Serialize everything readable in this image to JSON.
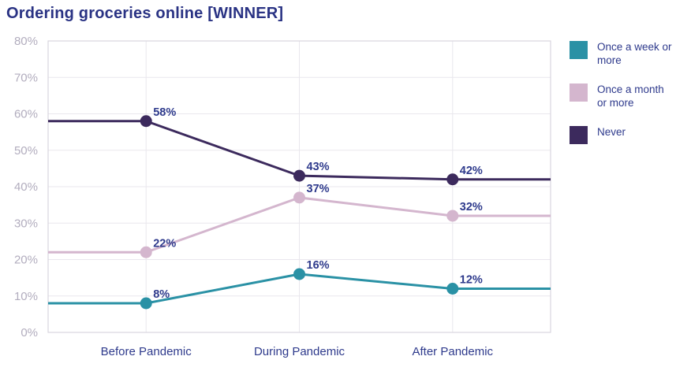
{
  "title": "Ordering groceries online [WINNER]",
  "colors": {
    "title": "#2a3384",
    "data_label": "#2e3a8c",
    "category_label": "#2e3a8c",
    "tick_label": "#b2adbe",
    "gridline": "#e9e7ed",
    "plot_border": "#d9d6de",
    "background": "#ffffff"
  },
  "chart_data": {
    "type": "line",
    "categories": [
      "Before Pandemic",
      "During Pandemic",
      "After Pandemic"
    ],
    "series": [
      {
        "name": "Once a week or more",
        "color": "#2a91a5",
        "values": [
          8,
          16,
          12
        ],
        "labels": [
          "8%",
          "16%",
          "12%"
        ]
      },
      {
        "name": "Once a month or more",
        "color": "#d4b6ce",
        "values": [
          22,
          37,
          32
        ],
        "labels": [
          "22%",
          "37%",
          "32%"
        ]
      },
      {
        "name": "Never",
        "color": "#3c2a5d",
        "values": [
          58,
          43,
          42
        ],
        "labels": [
          "58%",
          "43%",
          "42%"
        ]
      }
    ],
    "y_ticks": [
      "0%",
      "10%",
      "20%",
      "30%",
      "40%",
      "50%",
      "60%",
      "70%",
      "80%"
    ],
    "ylim": [
      0,
      80
    ],
    "grid": true,
    "legend_position": "right",
    "line_extends_to_plot_edges": true
  },
  "legend": {
    "items": [
      "Once a week or more",
      "Once a month or more",
      "Never"
    ]
  }
}
